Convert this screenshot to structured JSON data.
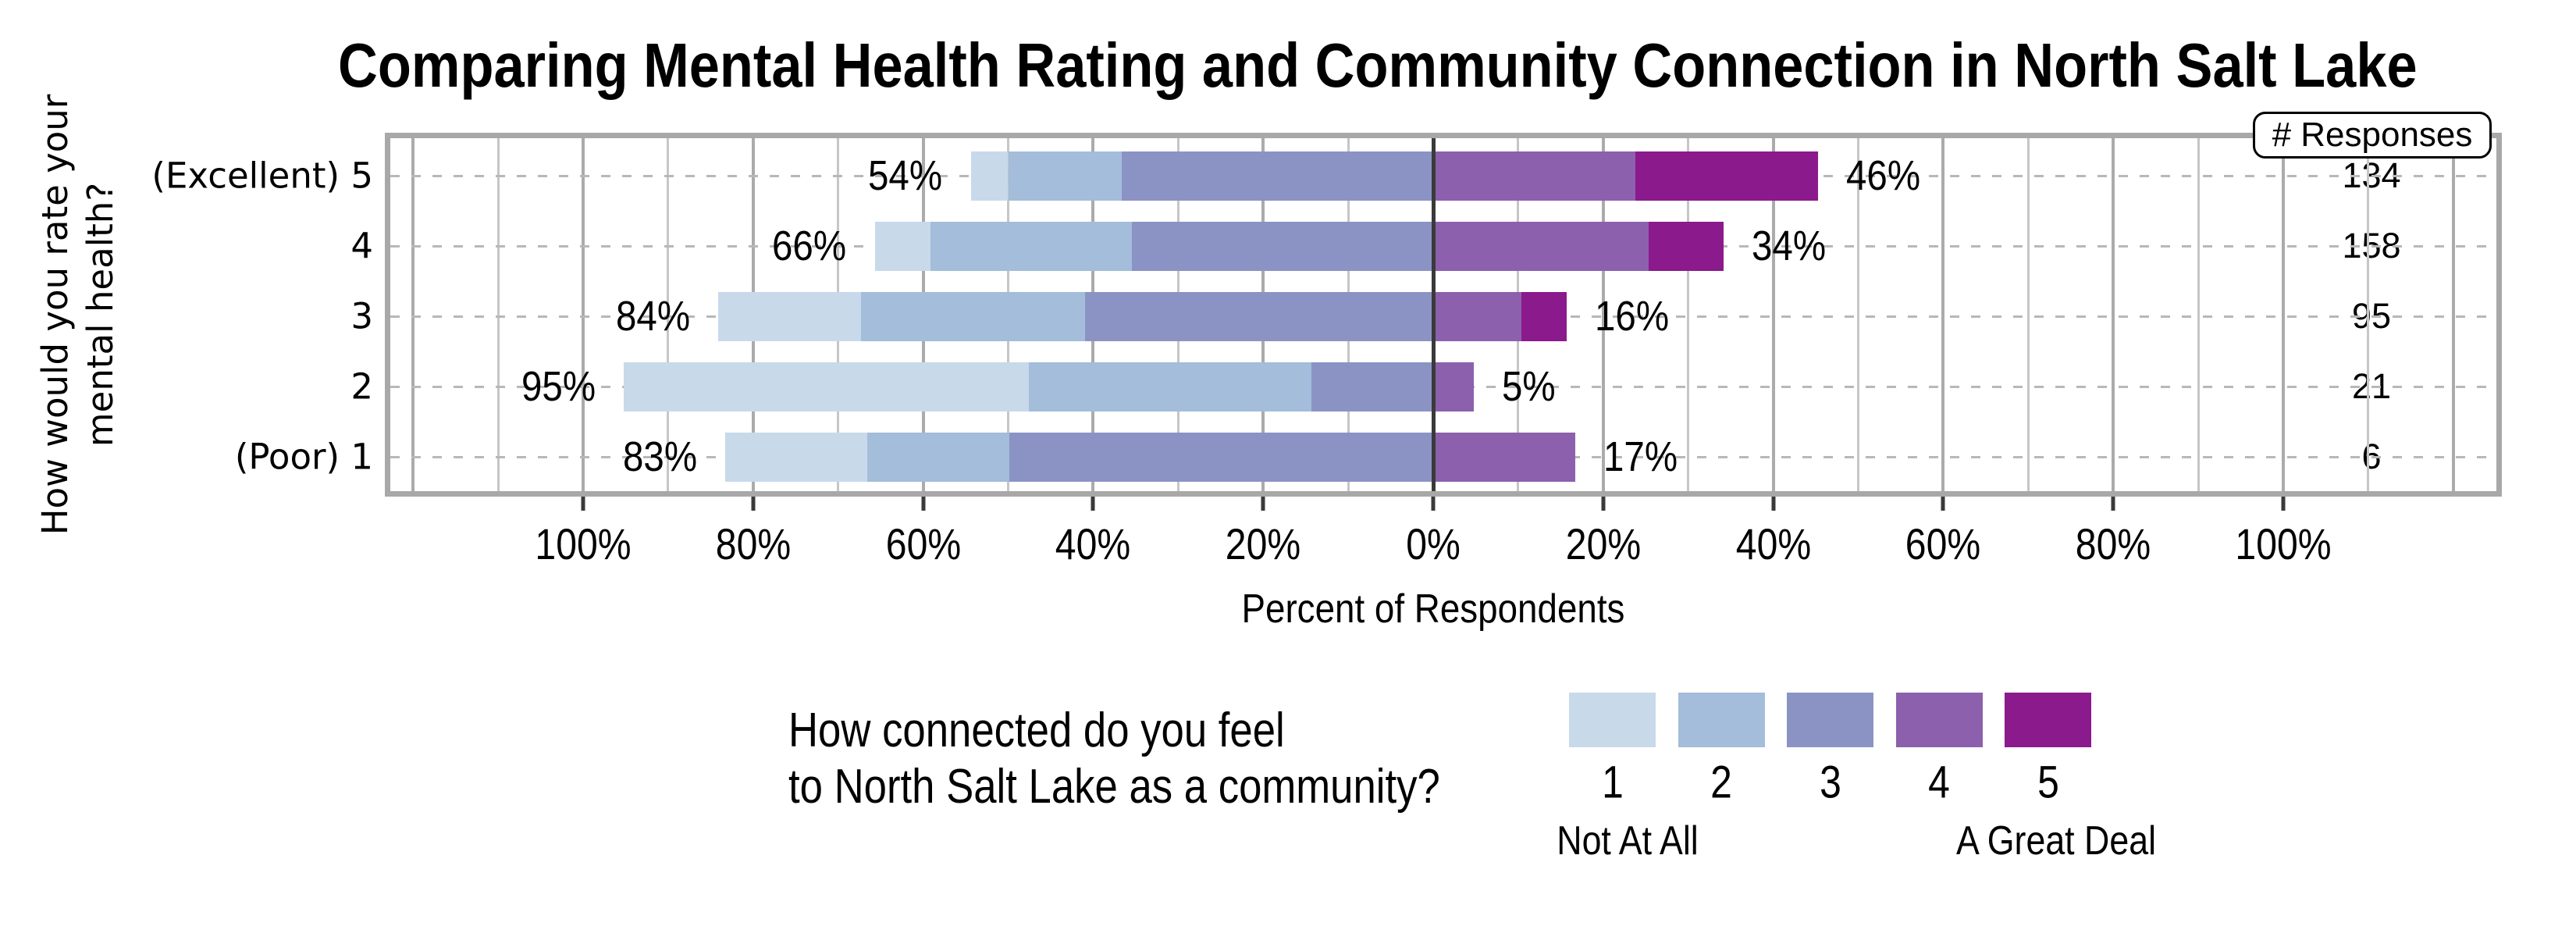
{
  "title": "Comparing Mental Health Rating and Community Connection in North Salt Lake",
  "y_axis": {
    "label_line1": "How would you rate your",
    "label_line2": "mental health?"
  },
  "x_axis": {
    "label": "Percent of Respondents",
    "tick_values": [
      -100,
      -80,
      -60,
      -40,
      -20,
      0,
      20,
      40,
      60,
      80,
      100
    ],
    "tick_labels": [
      "100%",
      "80%",
      "60%",
      "40%",
      "20%",
      "0%",
      "20%",
      "40%",
      "60%",
      "80%",
      "100%"
    ]
  },
  "responses": {
    "header": "# Responses"
  },
  "legend": {
    "question_line1": "How connected do you feel",
    "question_line2": "to North Salt Lake as a community?",
    "levels": [
      "1",
      "2",
      "3",
      "4",
      "5"
    ],
    "left_anchor": "Not At All",
    "right_anchor": "A Great Deal"
  },
  "chart_data": {
    "type": "diverging_stacked_bar",
    "title": "Comparing Mental Health Rating and Community Connection in North Salt Lake",
    "xlabel": "Percent of Respondents",
    "ylabel": "How would you rate your mental health?",
    "legend_title": "How connected do you feel to North Salt Lake as a community?",
    "legend_scale": {
      "1": "Not At All",
      "5": "A Great Deal"
    },
    "x_tick_labels": [
      "100%",
      "80%",
      "60%",
      "40%",
      "20%",
      "0%",
      "20%",
      "40%",
      "60%",
      "80%",
      "100%"
    ],
    "segment_colors": [
      "#c8d9ea",
      "#a3bdda",
      "#8b93c5",
      "#8c60ad",
      "#8b1a8c"
    ],
    "neutral_split_note": "segments 1-3 plotted left of 0, segments 4-5 right of 0",
    "rows": [
      {
        "label": "(Excellent) 5",
        "left_label": "54%",
        "right_label": "46%",
        "responses": "134",
        "segments_pct": [
          4.4,
          13.4,
          36.6,
          23.8,
          21.5
        ]
      },
      {
        "label": "4",
        "left_label": "66%",
        "right_label": "34%",
        "responses": "158",
        "segments_pct": [
          6.6,
          23.7,
          35.4,
          25.3,
          8.9
        ]
      },
      {
        "label": "3",
        "left_label": "84%",
        "right_label": "16%",
        "responses": "95",
        "segments_pct": [
          16.8,
          26.3,
          41.0,
          10.4,
          5.3
        ]
      },
      {
        "label": "2",
        "left_label": "95%",
        "right_label": "5%",
        "responses": "21",
        "segments_pct": [
          47.6,
          33.3,
          14.3,
          4.8,
          0
        ]
      },
      {
        "label": "(Poor) 1",
        "left_label": "83%",
        "right_label": "17%",
        "responses": "6",
        "segments_pct": [
          16.7,
          16.7,
          49.9,
          16.7,
          0
        ]
      }
    ]
  }
}
